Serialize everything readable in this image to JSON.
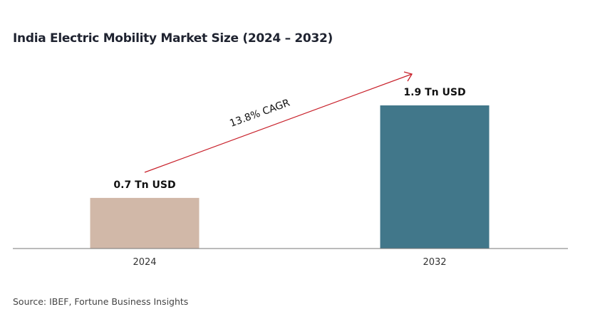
{
  "title": "India Electric Mobility Market Size (2024 – 2032)",
  "source": "Source: IBEF, Fortune Business Insights",
  "chart_data": {
    "type": "bar",
    "title": "India Electric Mobility Market Size (2024 – 2032)",
    "categories": [
      "2024",
      "2032"
    ],
    "values": [
      0.7,
      1.9
    ],
    "data_labels": [
      "0.7 Tn USD",
      "1.9 Tn USD"
    ],
    "colors": [
      "#d1b8a8",
      "#41778a"
    ],
    "unit": "Tn USD",
    "annotation": "13.8% CAGR",
    "annotation_color": "#c8202a",
    "xlabel": "",
    "ylabel": "",
    "ylim": [
      0,
      1.9
    ],
    "grid": false
  }
}
